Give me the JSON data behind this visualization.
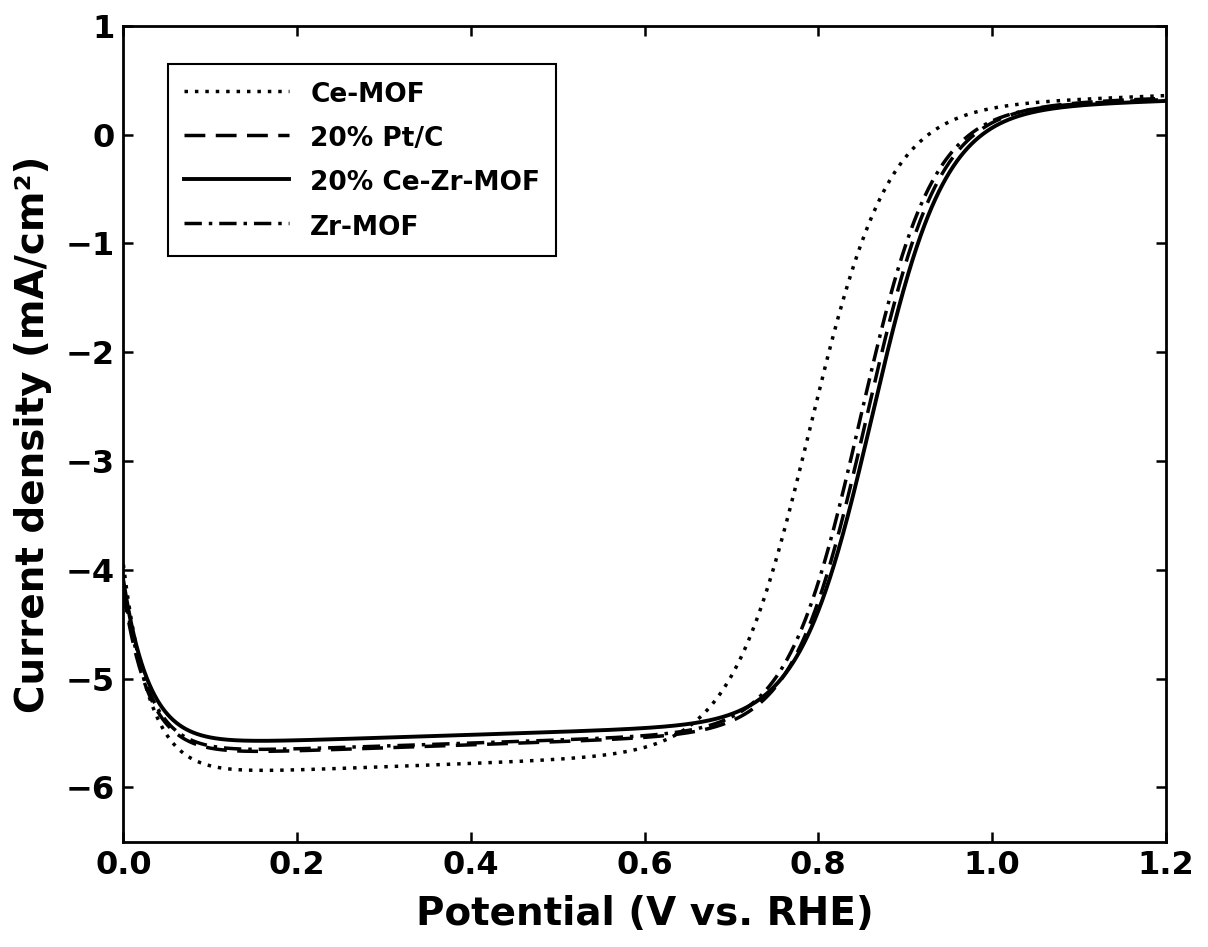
{
  "title": "",
  "xlabel": "Potential (V vs. RHE)",
  "ylabel": "Current density (mA/cm²)",
  "xlim": [
    0.0,
    1.2
  ],
  "ylim": [
    -6.5,
    1.0
  ],
  "yticks": [
    1,
    0,
    -1,
    -2,
    -3,
    -4,
    -5,
    -6
  ],
  "xticks": [
    0.0,
    0.2,
    0.4,
    0.6,
    0.8,
    1.0,
    1.2
  ],
  "background_color": "#ffffff",
  "series": [
    {
      "label": "Ce-MOF",
      "linestyle": "dotted",
      "linewidth": 2.5,
      "color": "#000000",
      "half_wave": 0.79,
      "steepness": 22,
      "plateau": -5.9,
      "slope": 0.3,
      "v0_current": -3.95
    },
    {
      "label": "20% Pt/C",
      "linestyle": "dashed",
      "linewidth": 2.5,
      "color": "#000000",
      "half_wave": 0.855,
      "steepness": 24,
      "plateau": -5.72,
      "slope": 0.28,
      "v0_current": -4.2
    },
    {
      "label": "20% Ce-Zr-MOF",
      "linestyle": "solid",
      "linewidth": 2.8,
      "color": "#000000",
      "half_wave": 0.862,
      "steepness": 24,
      "plateau": -5.62,
      "slope": 0.26,
      "v0_current": -4.1
    },
    {
      "label": "Zr-MOF",
      "linestyle": "dashdot",
      "linewidth": 2.5,
      "color": "#000000",
      "half_wave": 0.848,
      "steepness": 24,
      "plateau": -5.7,
      "slope": 0.27,
      "v0_current": -4.15
    }
  ],
  "legend_fontsize": 19,
  "axis_label_fontsize": 28,
  "tick_fontsize": 23
}
